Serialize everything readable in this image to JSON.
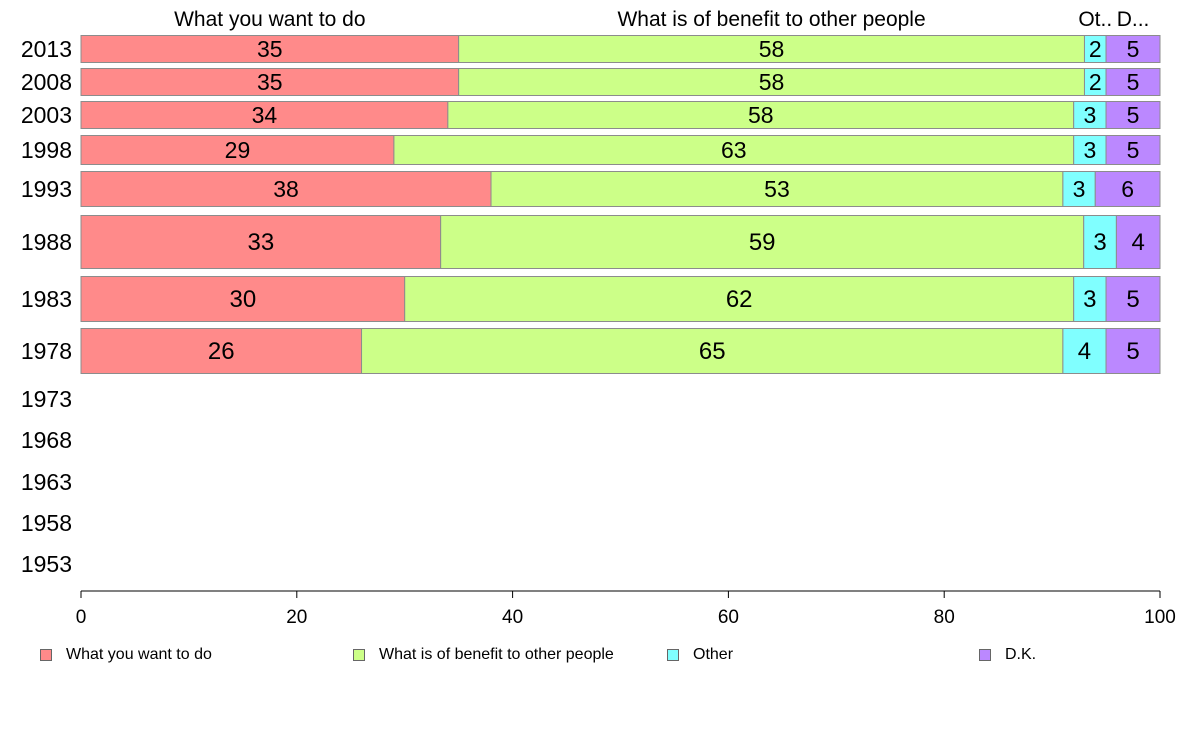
{
  "chart_data": {
    "type": "bar",
    "orientation": "horizontal",
    "stacked": true,
    "categories": [
      "2013",
      "2008",
      "2003",
      "1998",
      "1993",
      "1988",
      "1983",
      "1978",
      "1973",
      "1968",
      "1963",
      "1958",
      "1953"
    ],
    "series": [
      {
        "name": "What you want to do",
        "header": "What you want to do",
        "color": "#ff8a8a",
        "values": [
          35,
          35,
          34,
          29,
          38,
          33,
          30,
          26,
          null,
          null,
          null,
          null,
          null
        ]
      },
      {
        "name": "What is of benefit to other people",
        "header": "What is of benefit to other people",
        "color": "#ccff88",
        "values": [
          58,
          58,
          58,
          63,
          53,
          59,
          62,
          65,
          null,
          null,
          null,
          null,
          null
        ]
      },
      {
        "name": "Other",
        "header": "Ot..",
        "color": "#80ffff",
        "values": [
          2,
          2,
          3,
          3,
          3,
          3,
          3,
          4,
          null,
          null,
          null,
          null,
          null
        ]
      },
      {
        "name": "D.K.",
        "header": "D...",
        "color": "#bb88ff",
        "values": [
          5,
          5,
          5,
          5,
          6,
          4,
          5,
          5,
          null,
          null,
          null,
          null,
          null
        ]
      }
    ],
    "x_ticks": [
      "0",
      "20",
      "40",
      "60",
      "80",
      "100"
    ],
    "xlim": [
      0,
      100
    ],
    "grid": false,
    "legend_position": "bottom"
  }
}
